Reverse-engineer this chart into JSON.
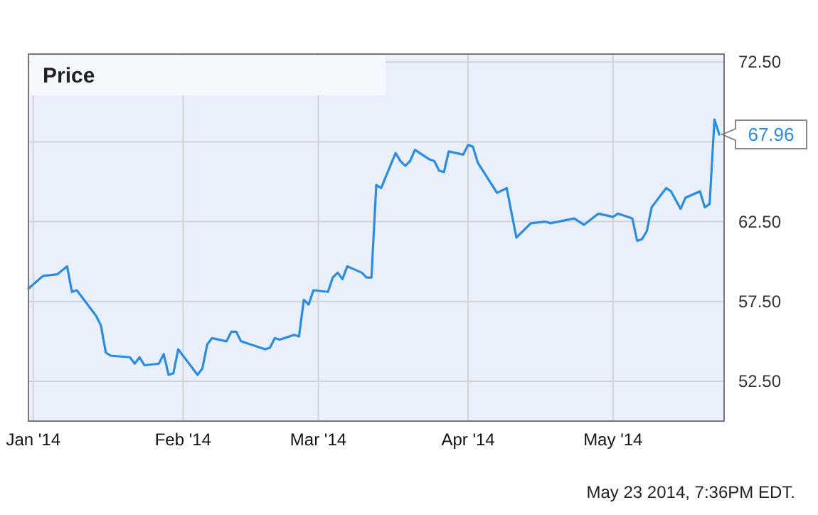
{
  "chart_data": {
    "type": "line",
    "title": "Price",
    "x": [
      "2013-12-31",
      "2014-01-03",
      "2014-01-06",
      "2014-01-08",
      "2014-01-09",
      "2014-01-10",
      "2014-01-14",
      "2014-01-15",
      "2014-01-16",
      "2014-01-17",
      "2014-01-21",
      "2014-01-22",
      "2014-01-23",
      "2014-01-24",
      "2014-01-27",
      "2014-01-28",
      "2014-01-29",
      "2014-01-30",
      "2014-01-31",
      "2014-02-04",
      "2014-02-05",
      "2014-02-06",
      "2014-02-07",
      "2014-02-10",
      "2014-02-11",
      "2014-02-12",
      "2014-02-13",
      "2014-02-14",
      "2014-02-18",
      "2014-02-19",
      "2014-02-20",
      "2014-02-21",
      "2014-02-24",
      "2014-02-25",
      "2014-02-26",
      "2014-02-27",
      "2014-02-28",
      "2014-03-03",
      "2014-03-04",
      "2014-03-05",
      "2014-03-06",
      "2014-03-07",
      "2014-03-10",
      "2014-03-11",
      "2014-03-12",
      "2014-03-13",
      "2014-03-14",
      "2014-03-17",
      "2014-03-18",
      "2014-03-19",
      "2014-03-20",
      "2014-03-21",
      "2014-03-24",
      "2014-03-25",
      "2014-03-26",
      "2014-03-27",
      "2014-03-28",
      "2014-03-31",
      "2014-04-01",
      "2014-04-02",
      "2014-04-03",
      "2014-04-07",
      "2014-04-09",
      "2014-04-11",
      "2014-04-14",
      "2014-04-17",
      "2014-04-18",
      "2014-04-23",
      "2014-04-25",
      "2014-04-28",
      "2014-05-01",
      "2014-05-02",
      "2014-05-05",
      "2014-05-06",
      "2014-05-07",
      "2014-05-08",
      "2014-05-09",
      "2014-05-12",
      "2014-05-13",
      "2014-05-15",
      "2014-05-16",
      "2014-05-19",
      "2014-05-20",
      "2014-05-21",
      "2014-05-22",
      "2014-05-23"
    ],
    "series": [
      {
        "color": "#2b8ce0",
        "values": [
          58.3,
          59.1,
          59.2,
          59.7,
          58.1,
          58.2,
          56.6,
          56.0,
          54.3,
          54.1,
          54.0,
          53.6,
          54.0,
          53.5,
          53.6,
          54.2,
          52.9,
          53.0,
          54.5,
          52.9,
          53.3,
          54.8,
          55.2,
          55.0,
          55.6,
          55.6,
          55.0,
          54.9,
          54.5,
          54.6,
          55.2,
          55.1,
          55.4,
          55.3,
          57.6,
          57.3,
          58.2,
          58.1,
          59.0,
          59.3,
          58.9,
          59.7,
          59.3,
          59.0,
          59.0,
          64.8,
          64.6,
          66.8,
          66.3,
          66.0,
          66.3,
          67.0,
          66.4,
          66.3,
          65.7,
          65.6,
          66.9,
          66.7,
          67.3,
          67.2,
          66.2,
          64.3,
          64.6,
          61.5,
          62.4,
          62.5,
          62.4,
          62.7,
          62.3,
          63.0,
          62.8,
          63.0,
          62.7,
          61.3,
          61.4,
          61.9,
          63.4,
          64.6,
          64.4,
          63.3,
          64.0,
          64.4,
          63.4,
          63.6,
          68.9,
          67.96
        ],
        "value_labels": [
          null,
          null,
          null,
          null,
          null,
          null,
          null,
          null,
          null,
          null,
          null,
          null,
          null,
          null,
          null,
          null,
          null,
          null,
          null,
          null,
          null,
          null,
          null,
          null,
          null,
          null,
          null,
          null,
          null,
          null,
          null,
          null,
          null,
          null,
          null,
          null,
          null,
          null,
          null,
          null,
          null,
          null,
          null,
          null,
          null,
          null,
          null,
          null,
          null,
          null,
          null,
          null,
          null,
          null,
          null,
          null,
          null,
          null,
          null,
          null,
          null,
          null,
          null,
          null,
          null,
          null,
          null,
          null,
          null,
          null,
          null,
          null,
          null,
          null,
          null,
          null,
          null,
          null,
          null,
          null,
          null,
          null,
          null,
          null,
          null,
          "67.96"
        ]
      }
    ],
    "xlim": [
      "2013-12-31",
      "2014-05-24"
    ],
    "xticks": [
      {
        "value": "2014-01-01",
        "label": "Jan '14"
      },
      {
        "value": "2014-02-01",
        "label": "Feb '14"
      },
      {
        "value": "2014-03-01",
        "label": "Mar '14"
      },
      {
        "value": "2014-04-01",
        "label": "Apr '14"
      },
      {
        "value": "2014-05-01",
        "label": "May '14"
      }
    ],
    "ylim": [
      50,
      73
    ],
    "yticks": [
      {
        "value": 52.5,
        "label": "52.50"
      },
      {
        "value": 57.5,
        "label": "57.50"
      },
      {
        "value": 62.5,
        "label": "62.50"
      },
      {
        "value": 67.5,
        "label": null
      },
      {
        "value": 72.5,
        "label": "72.50"
      }
    ],
    "grid": true,
    "annotations": [
      "May 23 2014, 7:36PM EDT."
    ]
  }
}
